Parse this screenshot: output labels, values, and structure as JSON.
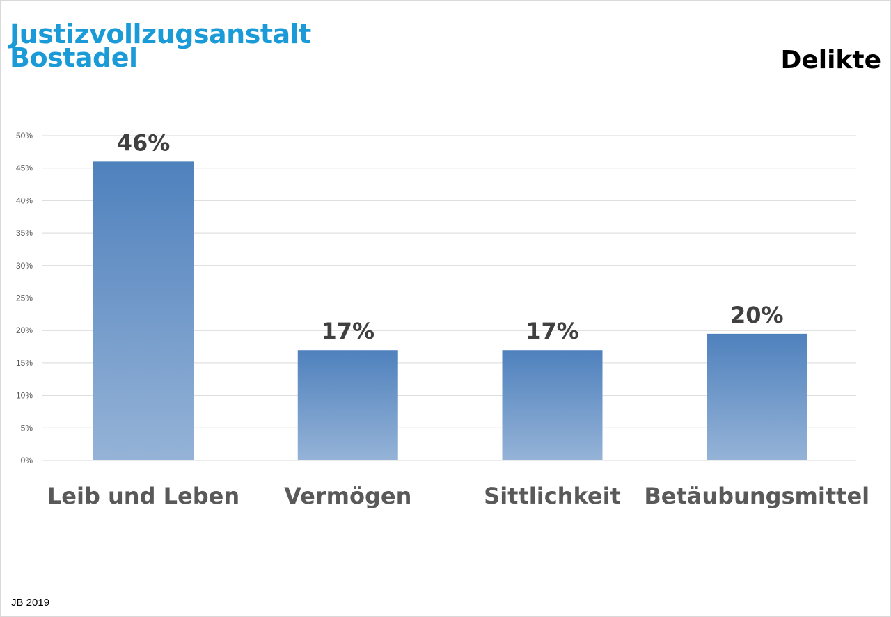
{
  "header": {
    "org_line1": "Justizvollzugsanstalt",
    "org_line2": "Bostadel",
    "chart_title": "Delikte"
  },
  "footer": {
    "note": "JB 2019"
  },
  "colors": {
    "bar_top": "#4f81bd",
    "bar_bottom": "#95b3d7",
    "grid": "#d9d9d9",
    "org_title": "#1a9ad6"
  },
  "chart_data": {
    "type": "bar",
    "title": "Delikte",
    "xlabel": "",
    "ylabel": "",
    "categories": [
      "Leib und Leben",
      "Vermögen",
      "Sittlichkeit",
      "Betäubungsmittel"
    ],
    "values": [
      46,
      17,
      17,
      19.5
    ],
    "data_labels": [
      "46%",
      "17%",
      "17%",
      "20%"
    ],
    "ylim": [
      0,
      50
    ],
    "y_ticks": [
      0,
      5,
      10,
      15,
      20,
      25,
      30,
      35,
      40,
      45,
      50
    ],
    "y_tick_labels": [
      "0%",
      "5%",
      "10%",
      "15%",
      "20%",
      "25%",
      "30%",
      "35%",
      "40%",
      "45%",
      "50%"
    ],
    "grid": true,
    "legend": "none"
  }
}
